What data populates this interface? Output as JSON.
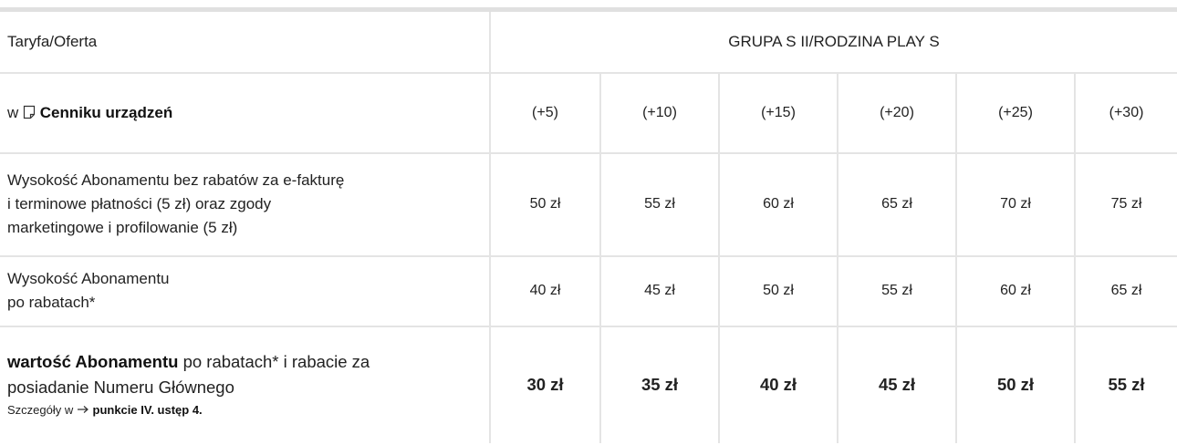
{
  "table": {
    "header": {
      "label": "Taryfa/Oferta",
      "group": "GRUPA S II/RODZINA PLAY S"
    },
    "rows": [
      {
        "label": {
          "prefix": "w",
          "link": "Cenniku urządzeń"
        },
        "cells": [
          "(+5)",
          "(+10)",
          "(+15)",
          "(+20)",
          "(+25)",
          "(+30)"
        ]
      },
      {
        "lines": [
          "Wysokość Abonamentu bez rabatów za e-fakturę",
          "i terminowe płatności (5 zł) oraz zgody",
          "marketingowe i profilowanie (5 zł)"
        ],
        "cells": [
          "50 zł",
          "55 zł",
          "60 zł",
          "65 zł",
          "70 zł",
          "75 zł"
        ]
      },
      {
        "lines": [
          "Wysokość Abonamentu",
          "po rabatach*"
        ],
        "cells": [
          "40 zł",
          "45 zł",
          "50 zł",
          "55 zł",
          "60 zł",
          "65 zł"
        ]
      },
      {
        "bold": "wartość Abonamentu",
        "lines": [
          "po rabatach* i rabacie za",
          "posiadanie Numeru Głównego"
        ],
        "note": {
          "prefix": "Szczegóły w",
          "link": "punkcie IV. ustęp 4."
        },
        "cells": [
          "30 zł",
          "35 zł",
          "40 zł",
          "45 zł",
          "50 zł",
          "55 zł"
        ]
      }
    ]
  }
}
